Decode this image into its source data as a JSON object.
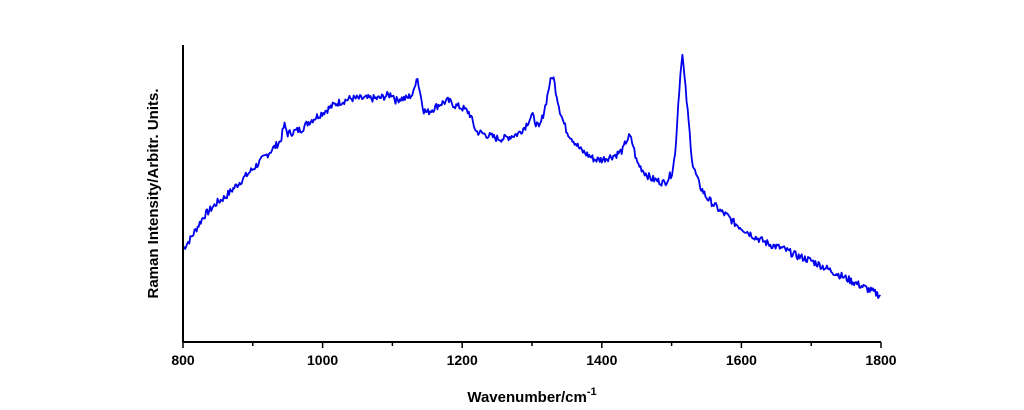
{
  "chart_data": {
    "type": "line",
    "title": "",
    "xlabel": "Wavenumber/cm",
    "xlabel_superscript": "-1",
    "ylabel": "Raman Intensity/Arbitr. Units.",
    "xlim": [
      800,
      1800
    ],
    "ylim": [
      0,
      100
    ],
    "x_ticks": [
      "800",
      "1000",
      "1200",
      "1400",
      "1600",
      "1800"
    ],
    "y_ticks_labeled": false,
    "grid": false,
    "legend": "none",
    "line_color": "#0000ee",
    "series": [
      {
        "x": [
          800,
          810,
          820,
          830,
          840,
          850,
          860,
          870,
          880,
          890,
          900,
          910,
          920,
          930,
          940,
          945,
          950,
          960,
          970,
          980,
          990,
          1000,
          1010,
          1020,
          1030,
          1040,
          1050,
          1060,
          1070,
          1080,
          1090,
          1100,
          1105,
          1110,
          1120,
          1130,
          1135,
          1140,
          1145,
          1150,
          1160,
          1170,
          1180,
          1190,
          1200,
          1210,
          1220,
          1230,
          1240,
          1250,
          1260,
          1270,
          1280,
          1290,
          1300,
          1305,
          1310,
          1315,
          1320,
          1325,
          1330,
          1335,
          1340,
          1345,
          1350,
          1360,
          1370,
          1380,
          1390,
          1400,
          1410,
          1420,
          1430,
          1435,
          1440,
          1445,
          1450,
          1460,
          1470,
          1480,
          1490,
          1500,
          1505,
          1510,
          1515,
          1520,
          1525,
          1530,
          1540,
          1550,
          1560,
          1570,
          1580,
          1590,
          1600,
          1620,
          1640,
          1660,
          1680,
          1700,
          1720,
          1740,
          1760,
          1780,
          1800
        ],
        "y": [
          26,
          30,
          35,
          40,
          43,
          46,
          48,
          51,
          54,
          57,
          60,
          63,
          66,
          69,
          72,
          79,
          75,
          76,
          77,
          80,
          82,
          84,
          86,
          88,
          89,
          90,
          90,
          90,
          90,
          90,
          91,
          92,
          89,
          90,
          90,
          92,
          100,
          92,
          85,
          84,
          86,
          88,
          89,
          87,
          86,
          84,
          76,
          75,
          74,
          73,
          73,
          74,
          75,
          78,
          83,
          80,
          77,
          82,
          88,
          96,
          100,
          92,
          85,
          80,
          76,
          72,
          68,
          66,
          64,
          64,
          65,
          66,
          68,
          72,
          74,
          70,
          63,
          59,
          56,
          55,
          54,
          58,
          66,
          90,
          110,
          94,
          78,
          62,
          53,
          48,
          45,
          42,
          40,
          37,
          35,
          31,
          28,
          26,
          23,
          21,
          18,
          15,
          12,
          9,
          6
        ]
      }
    ]
  }
}
